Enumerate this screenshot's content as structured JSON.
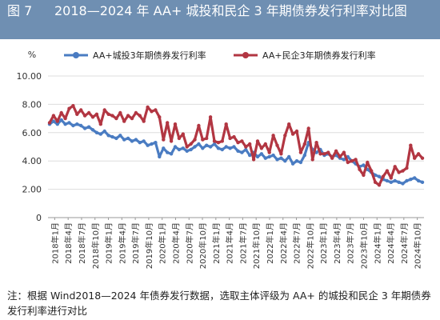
{
  "figure": {
    "number": "图 7",
    "title": "2018—2024 年 AA+ 城投和民企 3 年期债券发行利率对比图",
    "note": "注：根据 Wind2018—2024 年债券发行数据，选取主体评级为 AA+ 的城投和民企 3 年期债券发行利率进行对比"
  },
  "colors": {
    "series_chengtou": "#4a7cc2",
    "series_minqi": "#b23642",
    "grid": "#dddddd",
    "axis": "#999999"
  },
  "chart_data": {
    "type": "line",
    "ylabel": "%",
    "ylim": [
      0,
      10
    ],
    "yticks": [
      "0",
      "2.00",
      "4.00",
      "6.00",
      "8.00",
      "10.00"
    ],
    "grid": true,
    "legend_position": "top",
    "xlabels": [
      "2018年1月",
      "2018年4月",
      "2018年7月",
      "2018年10月",
      "2019年1月",
      "2019年4月",
      "2019年7月",
      "2019年10月",
      "2020年1月",
      "2020年4月",
      "2020年7月",
      "2020年10月",
      "2021年1月",
      "2021年4月",
      "2021年7月",
      "2021年10月",
      "2022年1月",
      "2022年4月",
      "2022年7月",
      "2022年10月",
      "2023年1月",
      "2023年4月",
      "2023年7月",
      "2023年10月",
      "2024年1月",
      "2024年4月",
      "2024年7月",
      "2024年10月"
    ],
    "series": [
      {
        "name": "AA+城投3年期债券发行利率",
        "values": [
          6.6,
          6.8,
          6.6,
          6.9,
          6.6,
          6.7,
          6.5,
          6.6,
          6.5,
          6.3,
          6.4,
          6.2,
          6.0,
          5.9,
          6.1,
          5.8,
          5.7,
          5.6,
          5.8,
          5.5,
          5.6,
          5.4,
          5.5,
          5.3,
          5.4,
          5.1,
          5.2,
          5.3,
          4.3,
          4.9,
          4.6,
          4.5,
          5.0,
          4.8,
          4.9,
          4.7,
          4.8,
          5.0,
          5.2,
          4.9,
          5.1,
          5.0,
          5.2,
          4.9,
          4.8,
          5.0,
          4.9,
          5.0,
          4.7,
          4.6,
          4.8,
          4.4,
          4.6,
          4.3,
          4.5,
          4.2,
          4.3,
          4.4,
          4.1,
          4.2,
          4.0,
          4.3,
          3.8,
          4.0,
          3.9,
          4.4,
          5.3,
          4.8,
          4.6,
          4.8,
          4.4,
          4.5,
          4.3,
          4.4,
          4.2,
          4.1,
          4.3,
          4.0,
          3.8,
          3.6,
          3.7,
          3.4,
          3.2,
          3.0,
          2.9,
          2.7,
          2.6,
          2.5,
          2.6,
          2.5,
          2.4,
          2.6,
          2.7,
          2.8,
          2.6,
          2.5
        ]
      },
      {
        "name": "AA+民企3年期债券发行利率",
        "values": [
          6.7,
          7.2,
          6.8,
          7.4,
          7.0,
          7.7,
          7.9,
          7.3,
          7.6,
          7.2,
          7.4,
          7.1,
          7.3,
          6.6,
          7.6,
          7.3,
          7.2,
          7.0,
          7.4,
          6.8,
          7.2,
          7.0,
          7.4,
          7.2,
          6.8,
          7.8,
          7.5,
          7.6,
          7.1,
          5.5,
          6.7,
          5.4,
          6.6,
          5.6,
          5.9,
          5.0,
          5.2,
          5.5,
          6.5,
          5.5,
          5.6,
          7.1,
          5.4,
          5.3,
          5.4,
          6.6,
          5.6,
          5.7,
          5.3,
          5.4,
          5.0,
          5.2,
          4.1,
          5.4,
          4.9,
          5.2,
          4.6,
          5.8,
          5.1,
          4.5,
          5.8,
          6.6,
          5.9,
          6.1,
          4.6,
          5.2,
          6.3,
          4.1,
          5.3,
          4.5,
          4.5,
          4.6,
          4.2,
          4.7,
          4.3,
          4.6,
          3.9,
          4.0,
          4.1,
          3.4,
          3.0,
          3.9,
          3.3,
          2.5,
          2.3,
          2.9,
          3.3,
          2.8,
          3.6,
          3.2,
          3.3,
          3.5,
          5.1,
          4.2,
          4.5,
          4.2
        ]
      }
    ]
  }
}
